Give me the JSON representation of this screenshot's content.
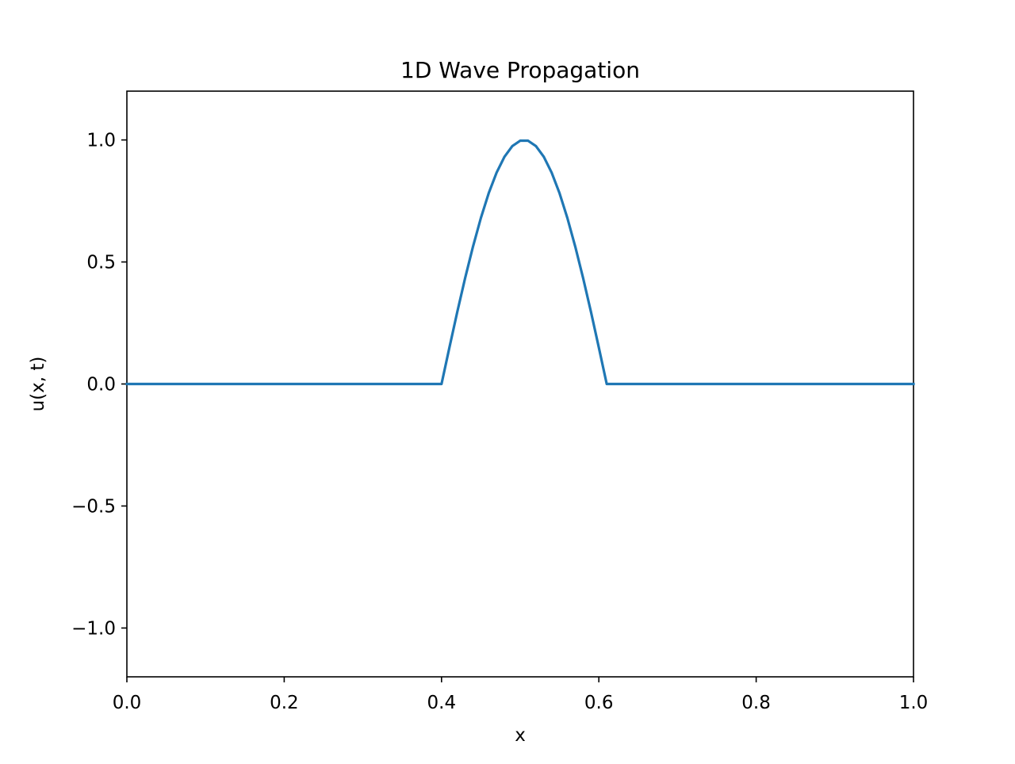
{
  "chart_data": {
    "type": "line",
    "title": "1D Wave Propagation",
    "xlabel": "x",
    "ylabel": "u(x, t)",
    "xlim": [
      0.0,
      1.0
    ],
    "ylim": [
      -1.2,
      1.2
    ],
    "xticks": [
      0.0,
      0.2,
      0.4,
      0.6,
      0.8,
      1.0
    ],
    "xtick_labels": [
      "0.0",
      "0.2",
      "0.4",
      "0.6",
      "0.8",
      "1.0"
    ],
    "yticks": [
      -1.0,
      -0.5,
      0.0,
      0.5,
      1.0
    ],
    "ytick_labels": [
      "−1.0",
      "−0.5",
      "0.0",
      "0.5",
      "1.0"
    ],
    "grid": false,
    "series": [
      {
        "color": "#1f77b4",
        "x": [
          0.0,
          0.4,
          0.41,
          0.42,
          0.43,
          0.44,
          0.45,
          0.46,
          0.47,
          0.48,
          0.49,
          0.5,
          0.51,
          0.52,
          0.53,
          0.54,
          0.55,
          0.56,
          0.57,
          0.58,
          0.59,
          0.6,
          0.61,
          1.0
        ],
        "y": [
          0.0,
          0.0,
          0.149,
          0.295,
          0.434,
          0.563,
          0.68,
          0.782,
          0.866,
          0.931,
          0.975,
          0.997,
          0.997,
          0.975,
          0.931,
          0.866,
          0.782,
          0.68,
          0.563,
          0.434,
          0.295,
          0.149,
          0.0,
          0.0
        ]
      }
    ]
  }
}
